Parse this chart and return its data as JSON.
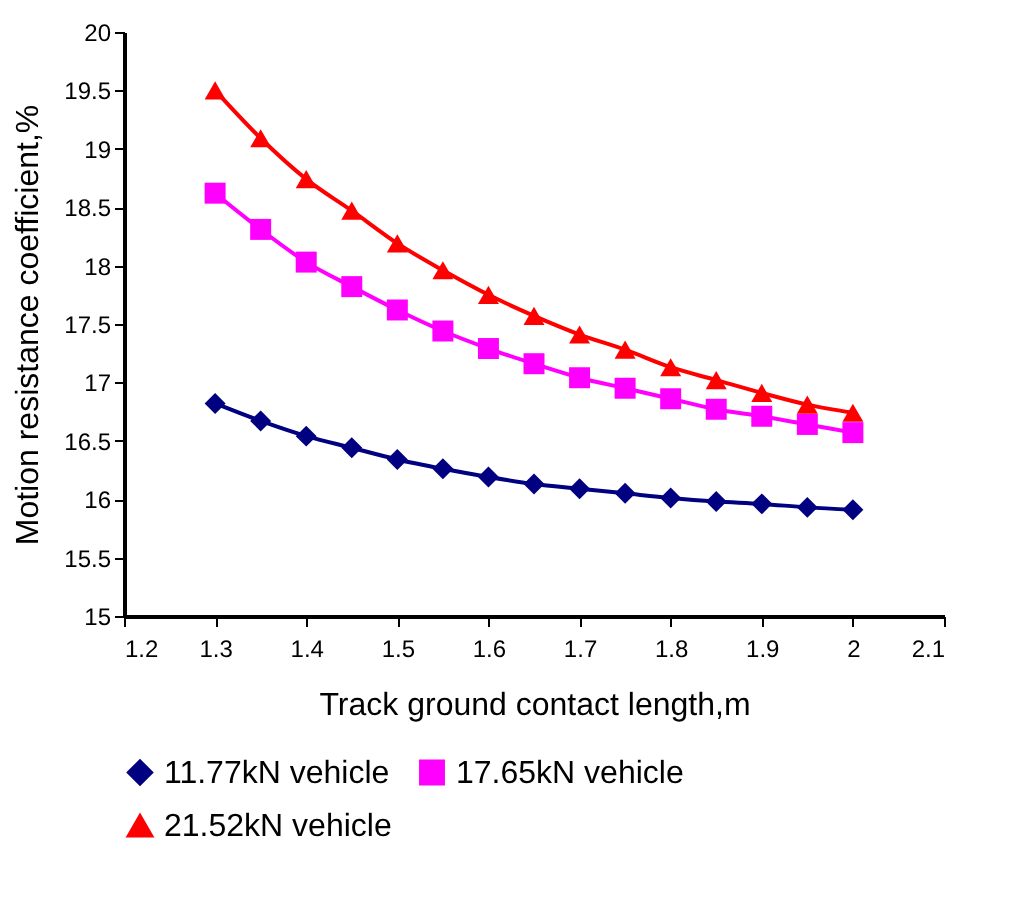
{
  "chart_data": {
    "type": "line",
    "xlabel": "Track ground contact length,m",
    "ylabel": "Motion resistance coefficient,%",
    "x": [
      1.3,
      1.35,
      1.4,
      1.45,
      1.5,
      1.55,
      1.6,
      1.65,
      1.7,
      1.75,
      1.8,
      1.85,
      1.9,
      1.95,
      2.0
    ],
    "series": [
      {
        "name": "11.77kN vehicle",
        "color": "#000080",
        "marker": "diamond",
        "values": [
          16.82,
          16.67,
          16.54,
          16.44,
          16.34,
          16.26,
          16.19,
          16.13,
          16.09,
          16.05,
          16.01,
          15.98,
          15.96,
          15.93,
          15.91
        ]
      },
      {
        "name": "17.65kN vehicle",
        "color": "#ff00ff",
        "marker": "square",
        "values": [
          18.62,
          18.31,
          18.03,
          17.82,
          17.62,
          17.44,
          17.29,
          17.16,
          17.04,
          16.95,
          16.86,
          16.77,
          16.71,
          16.64,
          16.57
        ]
      },
      {
        "name": "21.52kN vehicle",
        "color": "#ff0000",
        "marker": "triangle",
        "values": [
          19.5,
          19.09,
          18.74,
          18.47,
          18.19,
          17.96,
          17.75,
          17.57,
          17.41,
          17.28,
          17.13,
          17.02,
          16.91,
          16.81,
          16.74
        ]
      }
    ],
    "xlim": [
      1.2,
      2.1
    ],
    "xticks": [
      1.2,
      1.3,
      1.4,
      1.5,
      1.6,
      1.7,
      1.8,
      1.9,
      2,
      2.1
    ],
    "ylim": [
      15,
      20
    ],
    "yticks": [
      15,
      15.5,
      16,
      16.5,
      17,
      17.5,
      18,
      18.5,
      19,
      19.5,
      20
    ],
    "grid": false,
    "legend": "bottom",
    "line_style": "solid"
  }
}
